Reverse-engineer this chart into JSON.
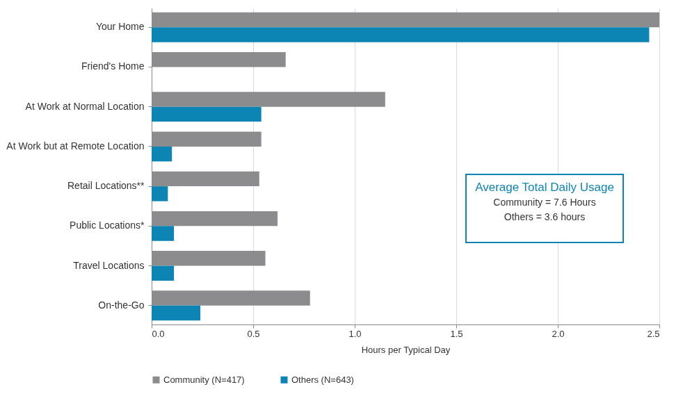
{
  "chart_data": {
    "type": "bar",
    "orientation": "horizontal",
    "xlabel": "Hours per Typical Day",
    "categories": [
      "Your Home",
      "Friend's Home",
      "At Work at Normal Location",
      "At Work but at Remote Location",
      "Retail Locations**",
      "Public Locations*",
      "Travel Locations",
      "On-the-Go"
    ],
    "series": [
      {
        "name": "Community (N=417)",
        "color": "#8c8c8e",
        "values": [
          2.5,
          0.66,
          1.15,
          0.54,
          0.53,
          0.62,
          0.56,
          0.78
        ]
      },
      {
        "name": "Others (N=643)",
        "color": "#0c84b4",
        "values": [
          2.45,
          null,
          0.54,
          0.1,
          0.08,
          0.11,
          0.11,
          0.24
        ]
      }
    ],
    "xlim": [
      0,
      2.5
    ],
    "xticks": [
      {
        "value": 0,
        "label": "0.0"
      },
      0.5,
      {
        "value": 1,
        "label": "1.0"
      },
      1.5,
      {
        "value": 2,
        "label": "2.0"
      },
      2.5
    ],
    "grid": "x",
    "legend": "bottom",
    "annotations": [
      "Average Total Daily Usage",
      "Community = 7.6 Hours",
      "Others = 3.6 hours"
    ]
  }
}
